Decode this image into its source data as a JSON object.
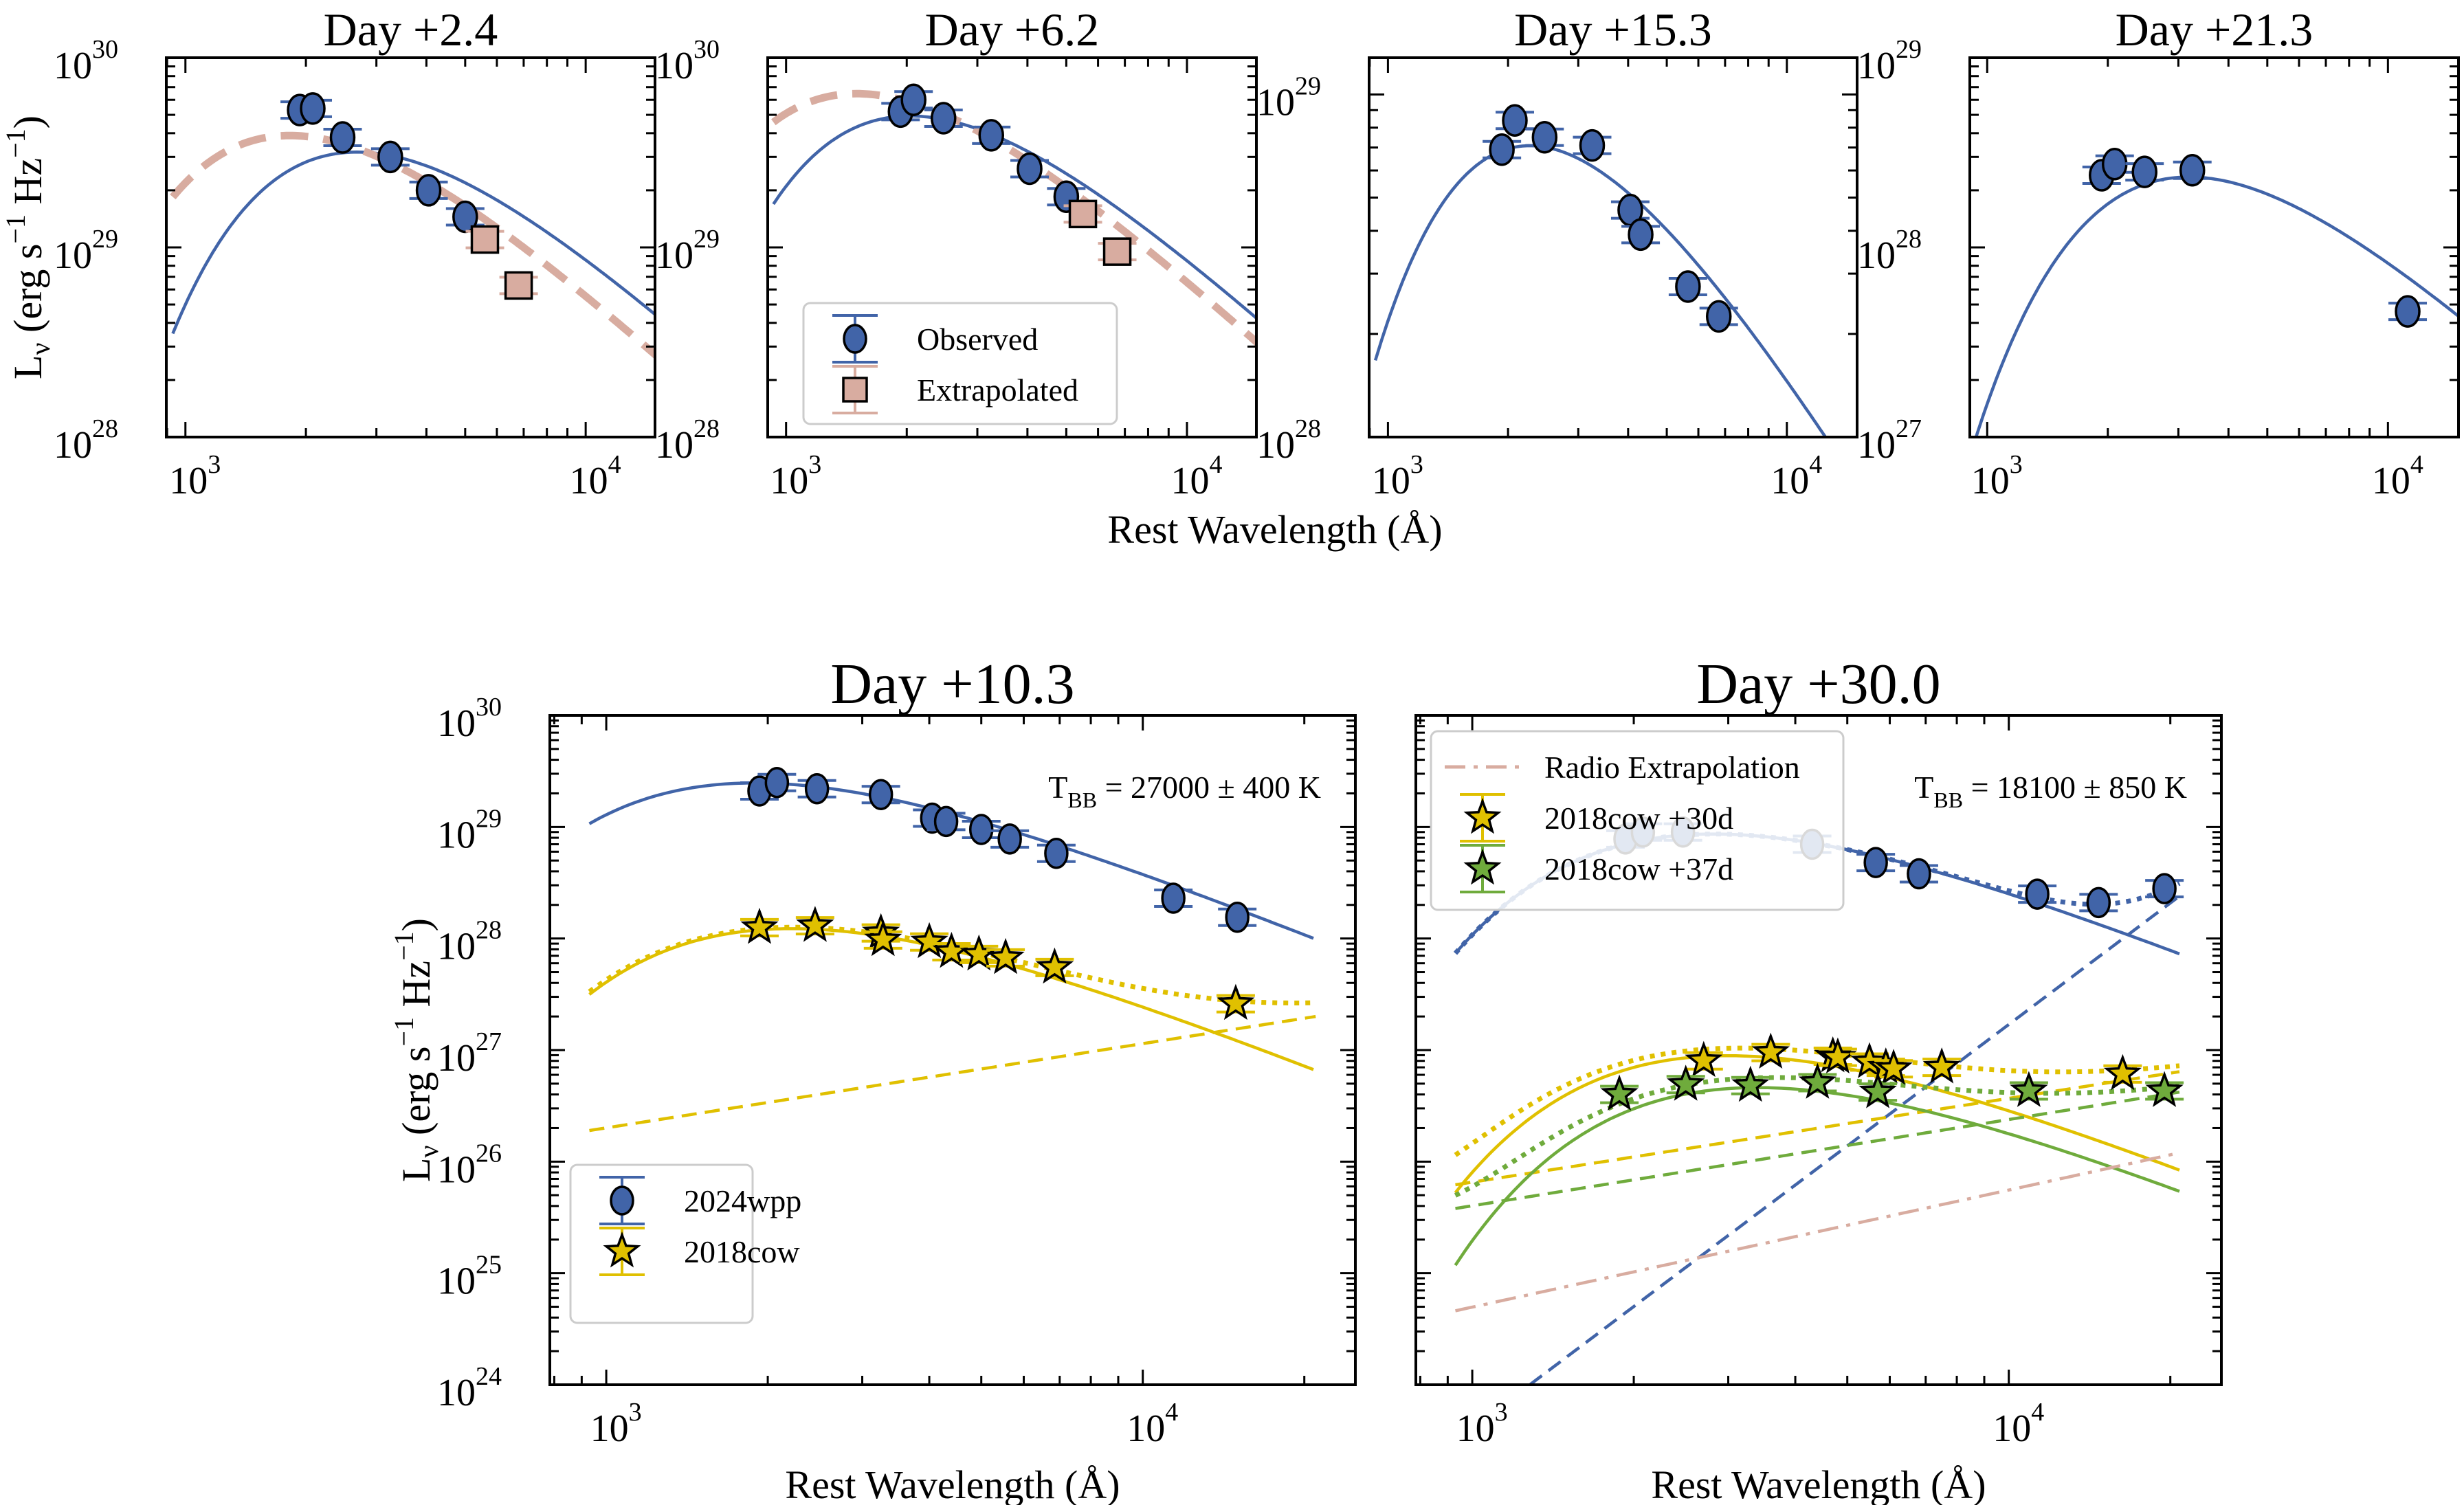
{
  "figure": {
    "shared_xlabel_top": "Rest Wavelength (Å)",
    "ylabel": "L_ν (erg s⁻¹ Hz⁻¹)",
    "ylabel_parts": {
      "main": "L",
      "sub": "ν",
      "units_open": " (erg s",
      "exp1": "−1",
      "units_mid": " Hz",
      "exp2": "−1",
      "units_close": ")"
    }
  },
  "colors": {
    "blue": "#4164a8",
    "blue_edge": "#000000",
    "salmon": "#d8aca0",
    "gold": "#e0c000",
    "green": "#6fab3c",
    "black": "#000000"
  },
  "chart_data": [
    {
      "id": "p1",
      "type": "scatter",
      "title": "Day +2.4",
      "xscale": "log",
      "yscale": "log",
      "xlim": [
        896,
        14900
      ],
      "ylim": [
        1e+28,
        1e+30
      ],
      "xticks": [
        {
          "value": 1000,
          "label": "10",
          "exp": "3"
        },
        {
          "value": 10000,
          "label": "10",
          "exp": "4"
        }
      ],
      "yticks": [
        {
          "value": 1e+28,
          "label": "10",
          "exp": "28"
        },
        {
          "value": 1e+29,
          "label": "10",
          "exp": "29"
        },
        {
          "value": 1e+30,
          "label": "10",
          "exp": "30"
        }
      ],
      "ylabel_shown": true,
      "series": [
        {
          "name": "Observed",
          "marker": "circle",
          "color": "blue",
          "x": [
            1930,
            2080,
            2470,
            3250,
            4050,
            5000
          ],
          "y": [
            5.3e+29,
            5.4e+29,
            3.8e+29,
            3e+29,
            2e+29,
            1.45e+29
          ]
        },
        {
          "name": "Extrapolated",
          "marker": "square",
          "color": "salmon",
          "x": [
            5600,
            6800
          ],
          "y": [
            1.1e+29,
            6.3e+28
          ]
        }
      ],
      "curves": [
        {
          "name": "Blackbody fit (observed)",
          "style": "solid",
          "color": "blue",
          "kind": "bb",
          "T": 19000,
          "norm_x": 3250,
          "norm_y": 3.05e+29
        },
        {
          "name": "Blackbody fit (with extrapolated)",
          "style": "thick-dashed",
          "color": "salmon",
          "kind": "bb",
          "T": 28000,
          "norm_x": 3250,
          "norm_y": 2.8e+29
        }
      ]
    },
    {
      "id": "p2",
      "type": "scatter",
      "title": "Day +6.2",
      "xscale": "log",
      "yscale": "log",
      "xlim": [
        900,
        14900
      ],
      "ylim": [
        1e+28,
        1e+30
      ],
      "xticks": [
        {
          "value": 1000,
          "label": "10",
          "exp": "3"
        },
        {
          "value": 10000,
          "label": "10",
          "exp": "4"
        }
      ],
      "yticks": [
        {
          "value": 1e+28,
          "label": "10",
          "exp": "28"
        },
        {
          "value": 1e+29,
          "label": "10",
          "exp": "29"
        },
        {
          "value": 1e+30,
          "label": "10",
          "exp": "30"
        }
      ],
      "legend": {
        "location": "lower-left",
        "entries": [
          {
            "label": "Observed",
            "marker": "circle",
            "color": "blue"
          },
          {
            "label": "Extrapolated",
            "marker": "square",
            "color": "salmon"
          }
        ]
      },
      "series": [
        {
          "name": "Observed",
          "marker": "circle",
          "color": "blue",
          "x": [
            1930,
            2080,
            2470,
            3250,
            4050,
            5000
          ],
          "y": [
            5.2e+29,
            6e+29,
            4.8e+29,
            3.9e+29,
            2.6e+29,
            1.85e+29
          ]
        },
        {
          "name": "Extrapolated",
          "marker": "square",
          "color": "salmon",
          "x": [
            5500,
            6700
          ],
          "y": [
            1.5e+29,
            9.5e+28
          ]
        }
      ],
      "curves": [
        {
          "name": "Blackbody fit (observed)",
          "style": "solid",
          "color": "blue",
          "kind": "bb",
          "T": 25000,
          "norm_x": 3250,
          "norm_y": 3.95e+29
        },
        {
          "name": "Blackbody fit (with extrapolated)",
          "style": "thick-dashed",
          "color": "salmon",
          "kind": "bb",
          "T": 34000,
          "norm_x": 3250,
          "norm_y": 3.75e+29
        }
      ]
    },
    {
      "id": "p3",
      "type": "scatter",
      "title": "Day +15.3",
      "xscale": "log",
      "yscale": "log",
      "xlim": [
        897,
        15000
      ],
      "ylim": [
        1e+28,
        1.28e+29
      ],
      "xticks": [
        {
          "value": 1000,
          "label": "10",
          "exp": "3"
        },
        {
          "value": 10000,
          "label": "10",
          "exp": "4"
        }
      ],
      "yticks": [
        {
          "value": 1e+28,
          "label": "10",
          "exp": "28"
        },
        {
          "value": 1e+29,
          "label": "10",
          "exp": "29"
        }
      ],
      "series": [
        {
          "name": "Observed",
          "marker": "circle",
          "color": "blue",
          "x": [
            1930,
            2080,
            2470,
            3250,
            4050,
            4300,
            5650,
            6750
          ],
          "y": [
            6.9e+28,
            8.4e+28,
            7.5e+28,
            7.1e+28,
            4.6e+28,
            3.9e+28,
            2.75e+28,
            2.25e+28
          ]
        }
      ],
      "curves": [
        {
          "name": "Blackbody fit",
          "style": "solid",
          "color": "blue",
          "kind": "bb",
          "T": 22500,
          "norm_x": 3000,
          "norm_y": 6.5e+28
        }
      ]
    },
    {
      "id": "p4",
      "type": "scatter",
      "title": "Day +21.3",
      "xscale": "log",
      "yscale": "log",
      "xlim": [
        905,
        15000
      ],
      "ylim": [
        1e+27,
        1e+29
      ],
      "xticks": [
        {
          "value": 1000,
          "label": "10",
          "exp": "3"
        },
        {
          "value": 10000,
          "label": "10",
          "exp": "4"
        }
      ],
      "yticks": [
        {
          "value": 1e+27,
          "label": "10",
          "exp": "27"
        },
        {
          "value": 1e+28,
          "label": "10",
          "exp": "28"
        },
        {
          "value": 1e+29,
          "label": "10",
          "exp": "29"
        }
      ],
      "series": [
        {
          "name": "Observed",
          "marker": "circle",
          "color": "blue",
          "x": [
            1930,
            2080,
            2470,
            3250,
            11200
          ],
          "y": [
            2.4e+28,
            2.75e+28,
            2.5e+28,
            2.55e+28,
            4.6e+27
          ]
        }
      ],
      "curves": [
        {
          "name": "Blackbody fit",
          "style": "solid",
          "color": "blue",
          "kind": "bb",
          "T": 16000,
          "norm_x": 3250,
          "norm_y": 2.35e+28
        }
      ]
    },
    {
      "id": "p5",
      "type": "scatter",
      "title": "Day +10.3",
      "xlabel": "Rest Wavelength (Å)",
      "annotation": {
        "prefix": "T",
        "sub": "BB",
        "suffix": " = 27000 ± 400 K"
      },
      "xscale": "log",
      "yscale": "log",
      "xlim": [
        785,
        24900
      ],
      "ylim": [
        1e+24,
        1e+30
      ],
      "xticks": [
        {
          "value": 1000,
          "label": "10",
          "exp": "3"
        },
        {
          "value": 10000,
          "label": "10",
          "exp": "4"
        }
      ],
      "yticks": [
        {
          "value": 1e+24,
          "label": "10",
          "exp": "24"
        },
        {
          "value": 1e+25,
          "label": "10",
          "exp": "25"
        },
        {
          "value": 1e+26,
          "label": "10",
          "exp": "26"
        },
        {
          "value": 1e+27,
          "label": "10",
          "exp": "27"
        },
        {
          "value": 1e+28,
          "label": "10",
          "exp": "28"
        },
        {
          "value": 1e+29,
          "label": "10",
          "exp": "29"
        },
        {
          "value": 1e+30,
          "label": "10",
          "exp": "30"
        }
      ],
      "ylabel_shown": true,
      "legend": {
        "location": "lower-left",
        "entries": [
          {
            "label": "2024wpp",
            "marker": "circle",
            "color": "blue"
          },
          {
            "label": "2018cow",
            "marker": "star",
            "color": "gold"
          }
        ]
      },
      "series": [
        {
          "name": "2024wpp",
          "marker": "circle",
          "color": "blue",
          "x": [
            1930,
            2080,
            2470,
            3250,
            4050,
            4300,
            5000,
            5650,
            6900,
            11400,
            15000
          ],
          "y": [
            2.1e+29,
            2.5e+29,
            2.2e+29,
            1.95e+29,
            1.2e+29,
            1.12e+29,
            9.5e+28,
            7.8e+28,
            5.8e+28,
            2.3e+28,
            1.55e+28
          ]
        },
        {
          "name": "2018cow",
          "marker": "star",
          "color": "gold",
          "x": [
            1930,
            2450,
            3250,
            3280,
            4000,
            4400,
            4950,
            5550,
            6850,
            14900
          ],
          "y": [
            1.25e+28,
            1.3e+28,
            1.12e+28,
            9.7e+27,
            9.3e+27,
            7.6e+27,
            7.2e+27,
            6.7e+27,
            5.5e+27,
            2.6e+27
          ]
        }
      ],
      "curves": [
        {
          "name": "2024wpp blackbody",
          "style": "solid",
          "color": "blue",
          "kind": "bb",
          "T": 27000,
          "norm_x": 3250,
          "norm_y": 1.85e+29
        },
        {
          "name": "2018cow blackbody",
          "style": "solid",
          "color": "gold",
          "kind": "bb",
          "T": 23000,
          "norm_x": 3250,
          "norm_y": 1.05e+28
        },
        {
          "name": "2018cow power-law",
          "style": "dashed",
          "color": "gold",
          "kind": "power",
          "x0": 930,
          "y0": 1.9e+26,
          "x1": 21000,
          "y1": 2e+27
        },
        {
          "name": "2018cow total",
          "style": "dotted",
          "color": "gold",
          "kind": "sum",
          "of": [
            1,
            2
          ]
        }
      ]
    },
    {
      "id": "p6",
      "type": "scatter",
      "title": "Day +30.0",
      "xlabel": "Rest Wavelength (Å)",
      "annotation": {
        "prefix": "T",
        "sub": "BB",
        "suffix": " = 18100 ± 850 K"
      },
      "xscale": "log",
      "yscale": "log",
      "xlim": [
        785,
        24900
      ],
      "ylim": [
        1e+24,
        1e+30
      ],
      "xticks": [
        {
          "value": 1000,
          "label": "10",
          "exp": "3"
        },
        {
          "value": 10000,
          "label": "10",
          "exp": "4"
        }
      ],
      "yticks": [],
      "legend": {
        "location": "upper-left",
        "entries": [
          {
            "label": "Radio Extrapolation",
            "marker": "dashdot",
            "color": "salmon"
          },
          {
            "label": "2018cow +30d",
            "marker": "star",
            "color": "gold"
          },
          {
            "label": "2018cow +37d",
            "marker": "star",
            "color": "green"
          }
        ]
      },
      "series": [
        {
          "name": "2024wpp",
          "marker": "circle",
          "color": "blue",
          "x": [
            1930,
            2080,
            2470,
            4300,
            5650,
            6800,
            11300,
            14700,
            19500
          ],
          "y": [
            7.8e+28,
            9e+28,
            9e+28,
            7e+28,
            4.8e+28,
            3.8e+28,
            2.5e+28,
            2.1e+28,
            2.8e+28
          ]
        },
        {
          "name": "2018cow +30d",
          "marker": "star",
          "color": "gold",
          "x": [
            2700,
            3600,
            4700,
            4800,
            5500,
            5900,
            6100,
            7500,
            16300
          ],
          "y": [
            8e+26,
            9.5e+26,
            8.8e+26,
            8.6e+26,
            7.8e+26,
            7e+26,
            6.8e+26,
            7e+26,
            6.1e+26
          ]
        },
        {
          "name": "2018cow +37d",
          "marker": "star",
          "color": "green",
          "x": [
            1880,
            2500,
            3300,
            4400,
            5700,
            10900,
            19500
          ],
          "y": [
            4e+26,
            4.9e+26,
            4.8e+26,
            5.1e+26,
            4.2e+26,
            4.3e+26,
            4.3e+26
          ]
        }
      ],
      "curves": [
        {
          "name": "2024wpp blackbody",
          "style": "solid",
          "color": "blue",
          "kind": "bb",
          "T": 18100,
          "norm_x": 3000,
          "norm_y": 8.6e+28
        },
        {
          "name": "2024wpp power-law",
          "style": "dashed",
          "color": "blue",
          "kind": "power",
          "x0": 1280,
          "y0": 1e+24,
          "x1": 20800,
          "y1": 2.4e+28
        },
        {
          "name": "2024wpp total",
          "style": "dotted",
          "color": "blue",
          "kind": "sum",
          "of": [
            0,
            1
          ]
        },
        {
          "name": "2018cow +30d blackbody",
          "style": "solid",
          "color": "gold",
          "kind": "bb",
          "T": 17000,
          "norm_x": 3300,
          "norm_y": 8.8e+26
        },
        {
          "name": "2018cow +30d power-law",
          "style": "dashed",
          "color": "gold",
          "kind": "power",
          "x0": 930,
          "y0": 6.2e+25,
          "x1": 20800,
          "y1": 6.4e+26
        },
        {
          "name": "2018cow +30d total",
          "style": "dotted",
          "color": "gold",
          "kind": "sum",
          "of": [
            3,
            4
          ]
        },
        {
          "name": "2018cow +37d blackbody",
          "style": "solid",
          "color": "green",
          "kind": "bb",
          "T": 15000,
          "norm_x": 3300,
          "norm_y": 4.6e+26
        },
        {
          "name": "2018cow +37d power-law",
          "style": "dashed",
          "color": "green",
          "kind": "power",
          "x0": 930,
          "y0": 3.8e+25,
          "x1": 20800,
          "y1": 4.2e+26
        },
        {
          "name": "2018cow +37d total",
          "style": "dotted",
          "color": "green",
          "kind": "sum",
          "of": [
            6,
            7
          ]
        },
        {
          "name": "Radio Extrapolation",
          "style": "dashdot",
          "color": "salmon",
          "kind": "power",
          "x0": 930,
          "y0": 4.6e+24,
          "x1": 20800,
          "y1": 1.2e+26
        }
      ]
    }
  ]
}
